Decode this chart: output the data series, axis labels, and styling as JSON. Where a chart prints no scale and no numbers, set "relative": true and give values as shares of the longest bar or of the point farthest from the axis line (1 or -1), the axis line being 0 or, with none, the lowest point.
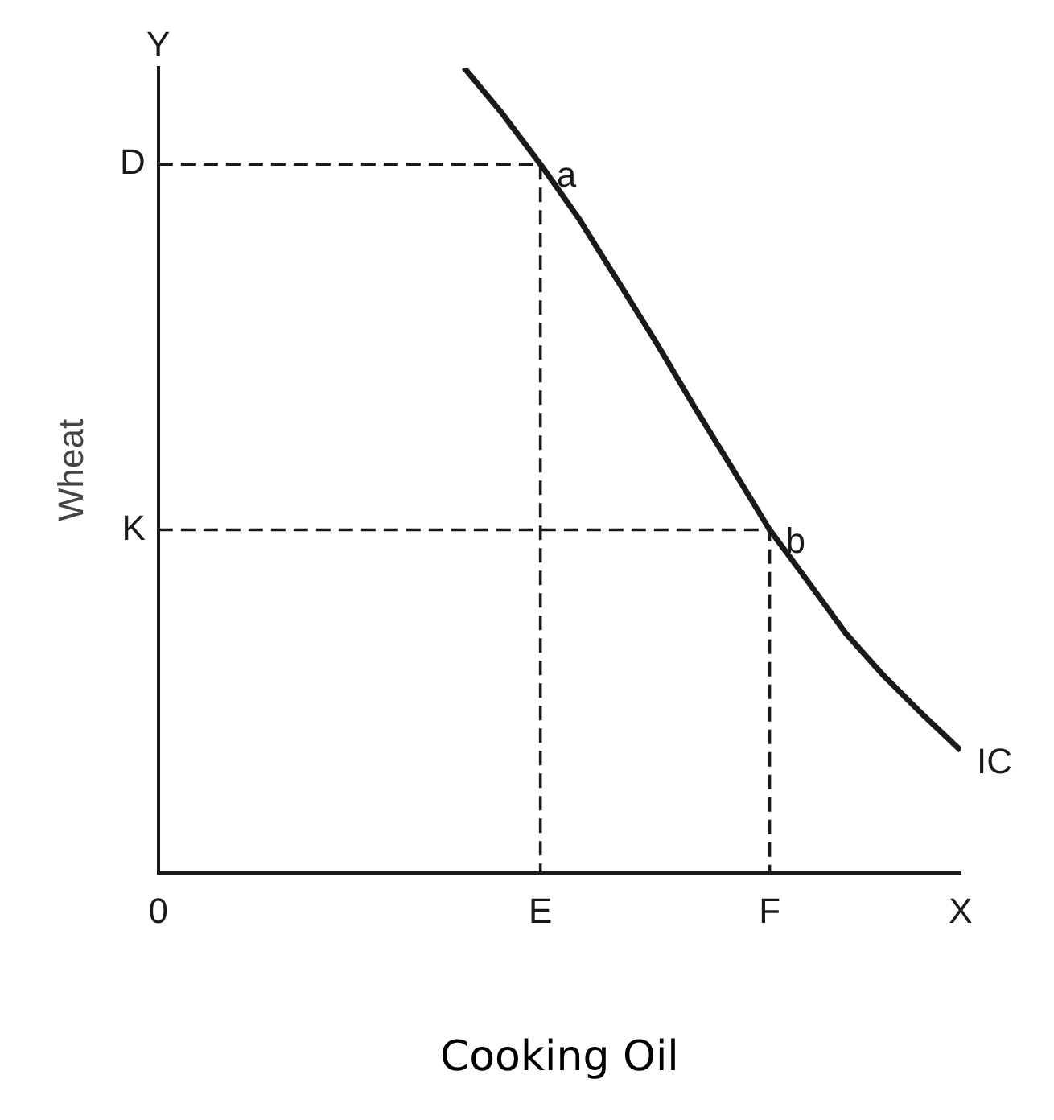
{
  "chart_data": {
    "type": "line",
    "relative": true,
    "xlabel": "Cooking Oil",
    "ylabel": "Wheat",
    "tick_labels": "x",
    "grid": false,
    "marker": "none",
    "categories": [
      "0",
      null,
      null,
      null,
      null,
      null,
      null,
      null,
      null,
      null,
      "E",
      null,
      null,
      null,
      null,
      null,
      "F",
      null,
      null,
      null,
      null,
      "X"
    ],
    "series": [
      {
        "color": "#1a1a1a",
        "line_style": "solid",
        "values": [
          null,
          null,
          null,
          null,
          null,
          null,
          null,
          null,
          1.0,
          0.943,
          0.88,
          0.813,
          0.737,
          0.661,
          0.581,
          0.504,
          0.426,
          0.362,
          0.297,
          0.244,
          0.197,
          0.152
        ]
      },
      {
        "color": "#1a1a1a",
        "line_style": "dashed",
        "x": [
          "0",
          "E",
          "E"
        ],
        "values": [
          0.88,
          0.88,
          0
        ]
      },
      {
        "color": "#1a1a1a",
        "line_style": "dashed",
        "x": [
          "0",
          "F",
          "F"
        ],
        "values": [
          0.426,
          0.426,
          0
        ]
      }
    ],
    "annotations": [
      "Y",
      {
        "text": "D",
        "x": "0",
        "y": 0.88
      },
      {
        "text": "K",
        "x": "0",
        "y": 0.426
      },
      {
        "text": "a",
        "x": "E",
        "y": 0.88
      },
      {
        "text": "b",
        "x": "F",
        "y": 0.426
      },
      {
        "text": "IC",
        "x": "X",
        "y": 0.152
      }
    ]
  }
}
